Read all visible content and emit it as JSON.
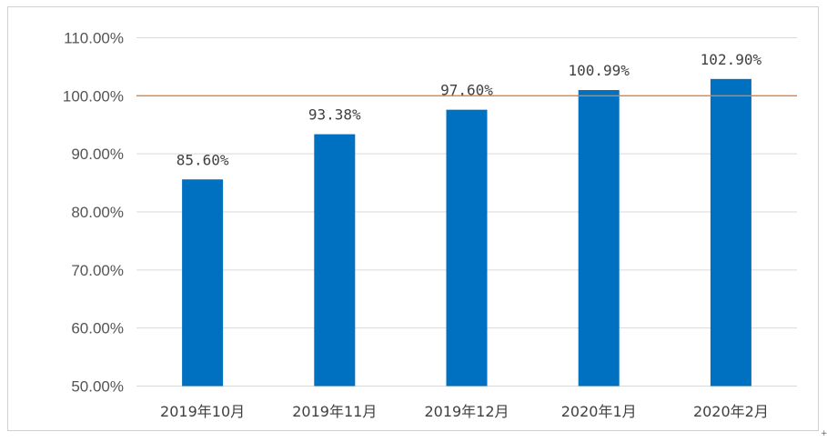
{
  "chart_data": {
    "type": "bar",
    "categories": [
      "2019年10月",
      "2019年11月",
      "2019年12月",
      "2020年1月",
      "2020年2月"
    ],
    "values": [
      85.6,
      93.38,
      97.6,
      100.99,
      102.9
    ],
    "data_labels": [
      "85.60%",
      "93.38%",
      "97.60%",
      "100.99%",
      "102.90%"
    ],
    "ytick_labels": [
      "50.00%",
      "60.00%",
      "70.00%",
      "80.00%",
      "90.00%",
      "100.00%",
      "110.00%"
    ],
    "ylim": [
      50,
      110
    ],
    "reference_line": 100,
    "grid": true,
    "title": "",
    "xlabel": "",
    "ylabel": "",
    "colors": {
      "bar": "#0070c0",
      "reference_line": "#ed7d31",
      "grid": "#d9d9d9"
    }
  },
  "corner_mark": "+"
}
